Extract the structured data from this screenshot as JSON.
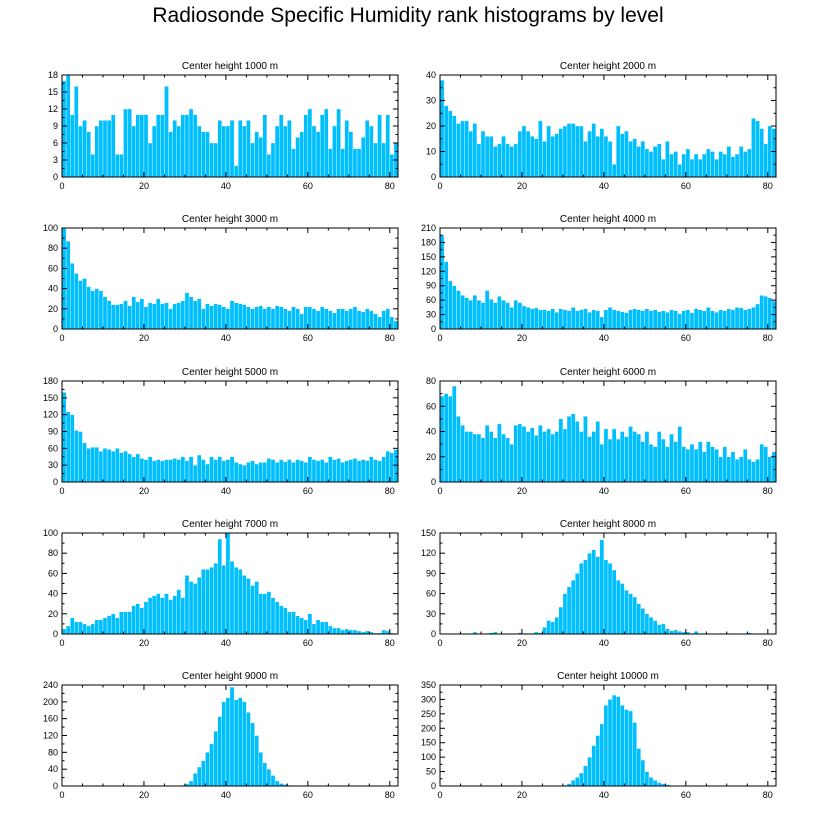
{
  "title": "Radiosonde Specific Humidity rank histograms by level",
  "colors": {
    "bar": "#00bfff",
    "bar_edge": "#ffffff",
    "axis": "#000000"
  },
  "chart_data": [
    {
      "type": "bar",
      "title": "Center height 1000 m",
      "xlim": [
        0,
        82
      ],
      "ylim": [
        0,
        18
      ],
      "xticks": [
        0,
        20,
        40,
        60,
        80
      ],
      "yticks": [
        0,
        3,
        6,
        9,
        12,
        15,
        18
      ],
      "values": [
        17,
        18,
        11,
        16,
        9,
        10,
        8,
        4,
        9,
        10,
        10,
        10,
        11,
        4,
        4,
        12,
        12,
        9,
        11,
        11,
        11,
        6,
        9,
        11,
        11,
        16,
        8,
        10,
        9,
        11,
        11,
        12,
        11,
        9,
        8,
        8,
        6,
        6,
        10,
        9,
        9,
        10,
        2,
        10,
        9,
        10,
        6,
        8,
        7,
        11,
        4,
        6,
        9,
        11,
        9,
        10,
        5,
        7,
        8,
        11,
        12,
        9,
        8,
        11,
        12,
        5,
        9,
        12,
        5,
        10,
        8,
        5,
        5,
        7,
        10,
        9,
        6,
        11,
        6,
        11,
        4,
        6
      ]
    },
    {
      "type": "bar",
      "title": "Center height 2000 m",
      "xlim": [
        0,
        82
      ],
      "ylim": [
        0,
        40
      ],
      "xticks": [
        0,
        20,
        40,
        60,
        80
      ],
      "yticks": [
        0,
        10,
        20,
        30,
        40
      ],
      "values": [
        38,
        28,
        26,
        24,
        21,
        22,
        22,
        18,
        21,
        13,
        18,
        16,
        16,
        12,
        13,
        16,
        13,
        12,
        13,
        18,
        20,
        18,
        16,
        15,
        22,
        14,
        20,
        16,
        17,
        19,
        20,
        21,
        21,
        20,
        20,
        14,
        18,
        21,
        16,
        19,
        16,
        14,
        5,
        20,
        17,
        18,
        14,
        15,
        12,
        14,
        11,
        10,
        12,
        13,
        7,
        14,
        9,
        10,
        5,
        9,
        11,
        7,
        9,
        7,
        9,
        11,
        10,
        7,
        10,
        9,
        12,
        8,
        9,
        12,
        10,
        11,
        23,
        22,
        19,
        13,
        20,
        19
      ]
    },
    {
      "type": "bar",
      "title": "Center height 3000 m",
      "xlim": [
        0,
        82
      ],
      "ylim": [
        0,
        100
      ],
      "xticks": [
        0,
        20,
        40,
        60,
        80
      ],
      "yticks": [
        0,
        20,
        40,
        60,
        80,
        100
      ],
      "values": [
        100,
        87,
        65,
        55,
        48,
        50,
        42,
        38,
        40,
        38,
        32,
        28,
        24,
        24,
        25,
        28,
        23,
        32,
        27,
        30,
        22,
        26,
        25,
        30,
        25,
        26,
        20,
        25,
        26,
        28,
        36,
        32,
        28,
        30,
        20,
        25,
        23,
        25,
        24,
        22,
        20,
        28,
        26,
        25,
        24,
        22,
        20,
        22,
        23,
        20,
        22,
        20,
        23,
        22,
        20,
        18,
        22,
        20,
        15,
        22,
        22,
        20,
        18,
        22,
        20,
        18,
        16,
        20,
        20,
        18,
        20,
        22,
        18,
        17,
        20,
        18,
        15,
        12,
        18,
        20,
        12,
        8
      ]
    },
    {
      "type": "bar",
      "title": "Center height 4000 m",
      "xlim": [
        0,
        82
      ],
      "ylim": [
        0,
        210
      ],
      "xticks": [
        0,
        20,
        40,
        60,
        80
      ],
      "yticks": [
        0,
        30,
        60,
        90,
        120,
        150,
        180,
        210
      ],
      "values": [
        195,
        140,
        100,
        90,
        80,
        70,
        65,
        60,
        70,
        60,
        55,
        80,
        62,
        55,
        68,
        60,
        55,
        45,
        60,
        55,
        48,
        45,
        42,
        44,
        40,
        40,
        38,
        42,
        35,
        42,
        40,
        38,
        45,
        38,
        40,
        42,
        35,
        40,
        38,
        25,
        40,
        45,
        40,
        38,
        36,
        34,
        40,
        42,
        40,
        38,
        42,
        38,
        40,
        36,
        38,
        35,
        40,
        38,
        32,
        38,
        40,
        34,
        42,
        40,
        38,
        45,
        38,
        35,
        40,
        38,
        42,
        40,
        45,
        44,
        40,
        42,
        45,
        52,
        70,
        68,
        65,
        58
      ]
    },
    {
      "type": "bar",
      "title": "Center height 5000 m",
      "xlim": [
        0,
        82
      ],
      "ylim": [
        0,
        180
      ],
      "xticks": [
        0,
        20,
        40,
        60,
        80
      ],
      "yticks": [
        0,
        30,
        60,
        90,
        120,
        150,
        180
      ],
      "values": [
        160,
        125,
        120,
        92,
        90,
        70,
        60,
        62,
        62,
        55,
        60,
        58,
        55,
        60,
        52,
        55,
        50,
        45,
        50,
        42,
        40,
        45,
        38,
        40,
        38,
        40,
        40,
        42,
        40,
        45,
        38,
        45,
        30,
        48,
        40,
        32,
        45,
        40,
        45,
        38,
        40,
        45,
        35,
        32,
        30,
        35,
        38,
        32,
        35,
        35,
        42,
        40,
        35,
        40,
        36,
        40,
        35,
        40,
        38,
        35,
        45,
        40,
        38,
        40,
        35,
        45,
        40,
        42,
        35,
        38,
        40,
        42,
        38,
        40,
        38,
        45,
        40,
        38,
        45,
        55,
        52,
        58
      ]
    },
    {
      "type": "bar",
      "title": "Center height 6000 m",
      "xlim": [
        0,
        82
      ],
      "ylim": [
        0,
        80
      ],
      "xticks": [
        0,
        20,
        40,
        60,
        80
      ],
      "yticks": [
        0,
        20,
        40,
        60,
        80
      ],
      "values": [
        68,
        70,
        68,
        76,
        52,
        45,
        40,
        40,
        38,
        38,
        35,
        45,
        40,
        35,
        46,
        38,
        35,
        30,
        45,
        46,
        44,
        40,
        43,
        37,
        45,
        40,
        42,
        38,
        40,
        50,
        42,
        52,
        54,
        48,
        40,
        52,
        36,
        40,
        48,
        30,
        42,
        34,
        42,
        34,
        40,
        36,
        44,
        40,
        38,
        32,
        40,
        30,
        28,
        40,
        34,
        28,
        38,
        32,
        44,
        28,
        26,
        30,
        26,
        32,
        24,
        32,
        28,
        26,
        20,
        28,
        20,
        24,
        18,
        20,
        26,
        18,
        16,
        18,
        30,
        28,
        20,
        24
      ]
    },
    {
      "type": "bar",
      "title": "Center height 7000 m",
      "xlim": [
        0,
        82
      ],
      "ylim": [
        0,
        100
      ],
      "xticks": [
        0,
        20,
        40,
        60,
        80
      ],
      "yticks": [
        0,
        20,
        40,
        60,
        80,
        100
      ],
      "values": [
        5,
        8,
        16,
        12,
        12,
        10,
        8,
        10,
        14,
        14,
        16,
        18,
        20,
        16,
        22,
        22,
        22,
        28,
        30,
        26,
        32,
        36,
        38,
        40,
        36,
        40,
        34,
        38,
        44,
        36,
        58,
        52,
        50,
        56,
        64,
        64,
        66,
        70,
        94,
        68,
        100,
        72,
        66,
        64,
        58,
        55,
        48,
        52,
        40,
        40,
        42,
        36,
        32,
        28,
        26,
        22,
        22,
        18,
        16,
        14,
        20,
        10,
        14,
        12,
        12,
        8,
        6,
        6,
        4,
        5,
        4,
        4,
        3,
        2,
        3,
        2,
        1,
        1,
        4,
        3,
        1,
        0
      ]
    },
    {
      "type": "bar",
      "title": "Center height 8000 m",
      "xlim": [
        0,
        82
      ],
      "ylim": [
        0,
        150
      ],
      "xticks": [
        0,
        20,
        40,
        60,
        80
      ],
      "yticks": [
        0,
        30,
        60,
        90,
        120,
        150
      ],
      "values": [
        0,
        0,
        0,
        0,
        1,
        0,
        0,
        1,
        3,
        0,
        0,
        1,
        2,
        3,
        0,
        0,
        1,
        0,
        0,
        2,
        0,
        1,
        1,
        3,
        2,
        10,
        20,
        18,
        25,
        40,
        60,
        70,
        80,
        90,
        105,
        110,
        120,
        125,
        115,
        140,
        110,
        105,
        95,
        80,
        75,
        65,
        60,
        55,
        45,
        38,
        30,
        25,
        20,
        14,
        15,
        8,
        5,
        6,
        4,
        3,
        3,
        1,
        4,
        1,
        1,
        0,
        0,
        0,
        1,
        0,
        0,
        0,
        0,
        0,
        1,
        2,
        0,
        0,
        0,
        0,
        0,
        0
      ]
    },
    {
      "type": "bar",
      "title": "Center height 9000 m",
      "xlim": [
        0,
        82
      ],
      "ylim": [
        0,
        240
      ],
      "xticks": [
        0,
        20,
        40,
        60,
        80
      ],
      "yticks": [
        0,
        40,
        80,
        120,
        160,
        200,
        240
      ],
      "values": [
        0,
        0,
        0,
        0,
        0,
        0,
        0,
        0,
        0,
        0,
        0,
        0,
        0,
        0,
        0,
        0,
        0,
        0,
        0,
        0,
        0,
        0,
        0,
        0,
        0,
        0,
        0,
        0,
        0,
        2,
        5,
        12,
        30,
        45,
        60,
        80,
        100,
        130,
        165,
        200,
        210,
        235,
        205,
        210,
        200,
        175,
        150,
        120,
        80,
        55,
        40,
        25,
        12,
        6,
        4,
        2,
        1,
        0,
        0,
        0,
        0,
        0,
        0,
        0,
        0,
        0,
        0,
        0,
        0,
        0,
        0,
        0,
        0,
        0,
        0,
        0,
        0,
        0,
        0,
        0,
        0,
        0
      ]
    },
    {
      "type": "bar",
      "title": "Center height 10000 m",
      "xlim": [
        0,
        82
      ],
      "ylim": [
        0,
        350
      ],
      "xticks": [
        0,
        20,
        40,
        60,
        80
      ],
      "yticks": [
        0,
        50,
        100,
        150,
        200,
        250,
        300,
        350
      ],
      "values": [
        0,
        0,
        0,
        0,
        0,
        0,
        0,
        0,
        0,
        0,
        0,
        0,
        0,
        0,
        0,
        0,
        0,
        0,
        0,
        0,
        0,
        0,
        0,
        0,
        0,
        0,
        0,
        0,
        0,
        1,
        3,
        8,
        20,
        30,
        45,
        70,
        100,
        140,
        175,
        215,
        280,
        300,
        315,
        310,
        280,
        265,
        260,
        220,
        130,
        90,
        50,
        30,
        20,
        12,
        8,
        5,
        2,
        1,
        0,
        0,
        0,
        0,
        0,
        0,
        0,
        0,
        0,
        0,
        0,
        0,
        0,
        0,
        0,
        0,
        0,
        0,
        0,
        0,
        0,
        0,
        0,
        0
      ]
    }
  ]
}
